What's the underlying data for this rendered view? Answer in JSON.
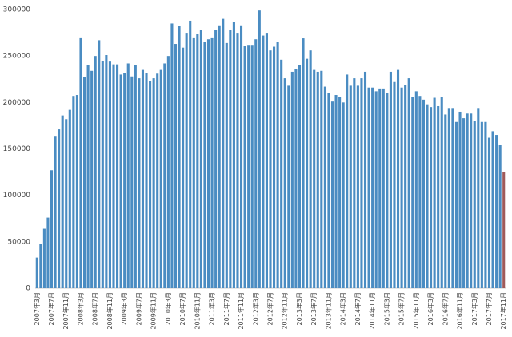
{
  "chart_data": {
    "type": "bar",
    "categories": [
      "2007年3月",
      null,
      null,
      null,
      "2007年7月",
      null,
      null,
      null,
      "2007年11月",
      null,
      null,
      null,
      "2008年3月",
      null,
      null,
      null,
      "2008年7月",
      null,
      null,
      null,
      "2008年11月",
      null,
      null,
      null,
      "2009年3月",
      null,
      null,
      null,
      "2009年7月",
      null,
      null,
      null,
      "2009年11月",
      null,
      null,
      null,
      "2010年3月",
      null,
      null,
      null,
      "2010年7月",
      null,
      null,
      null,
      "2010年11月",
      null,
      null,
      null,
      "2011年3月",
      null,
      null,
      null,
      "2011年7月",
      null,
      null,
      null,
      "2011年11月",
      null,
      null,
      null,
      "2012年3月",
      null,
      null,
      null,
      "2012年7月",
      null,
      null,
      null,
      "2012年11月",
      null,
      null,
      null,
      "2013年3月",
      null,
      null,
      null,
      "2013年7月",
      null,
      null,
      null,
      "2013年11月",
      null,
      null,
      null,
      "2014年3月",
      null,
      null,
      null,
      "2014年7月",
      null,
      null,
      null,
      "2014年11月",
      null,
      null,
      null,
      "2015年3月",
      null,
      null,
      null,
      "2015年7月",
      null,
      null,
      null,
      "2015年11月",
      null,
      null,
      null,
      "2016年3月",
      null,
      null,
      null,
      "2016年7月",
      null,
      null,
      null,
      "2016年11月",
      null,
      null,
      null,
      "2017年3月",
      null,
      null,
      null,
      "2017年7月",
      null,
      null,
      null,
      "2017年11月"
    ],
    "values": [
      33000,
      48000,
      64000,
      76000,
      127000,
      164000,
      171000,
      186000,
      182000,
      192000,
      207000,
      208000,
      270000,
      227000,
      240000,
      234000,
      250000,
      267000,
      245000,
      251000,
      244000,
      241000,
      241000,
      230000,
      232000,
      242000,
      228000,
      240000,
      226000,
      235000,
      232000,
      223000,
      226000,
      231000,
      235000,
      242000,
      250000,
      285000,
      263000,
      282000,
      259000,
      275000,
      288000,
      270000,
      274000,
      278000,
      265000,
      268000,
      270000,
      278000,
      283000,
      290000,
      264000,
      278000,
      287000,
      275000,
      283000,
      261000,
      262000,
      262000,
      268000,
      299000,
      272000,
      275000,
      256000,
      260000,
      265000,
      246000,
      226000,
      218000,
      233000,
      236000,
      240000,
      269000,
      247000,
      256000,
      235000,
      233000,
      234000,
      217000,
      210000,
      201000,
      208000,
      206000,
      200000,
      230000,
      218000,
      226000,
      218000,
      226000,
      233000,
      216000,
      216000,
      212000,
      215000,
      215000,
      210000,
      233000,
      222000,
      235000,
      216000,
      219000,
      226000,
      206000,
      212000,
      207000,
      203000,
      198000,
      195000,
      205000,
      196000,
      206000,
      187000,
      194000,
      194000,
      179000,
      190000,
      183000,
      188000,
      188000,
      180000,
      194000,
      179000,
      179000,
      162000,
      169000,
      165000,
      154000,
      125000
    ],
    "colors": [
      "#4a8cc2",
      "#4a8cc2",
      "#4a8cc2",
      "#4a8cc2",
      "#4a8cc2",
      "#4a8cc2",
      "#4a8cc2",
      "#4a8cc2",
      "#4a8cc2",
      "#4a8cc2",
      "#4a8cc2",
      "#4a8cc2",
      "#4a8cc2",
      "#4a8cc2",
      "#4a8cc2",
      "#4a8cc2",
      "#4a8cc2",
      "#4a8cc2",
      "#4a8cc2",
      "#4a8cc2",
      "#4a8cc2",
      "#4a8cc2",
      "#4a8cc2",
      "#4a8cc2",
      "#4a8cc2",
      "#4a8cc2",
      "#4a8cc2",
      "#4a8cc2",
      "#4a8cc2",
      "#4a8cc2",
      "#4a8cc2",
      "#4a8cc2",
      "#4a8cc2",
      "#4a8cc2",
      "#4a8cc2",
      "#4a8cc2",
      "#4a8cc2",
      "#4a8cc2",
      "#4a8cc2",
      "#4a8cc2",
      "#4a8cc2",
      "#4a8cc2",
      "#4a8cc2",
      "#4a8cc2",
      "#4a8cc2",
      "#4a8cc2",
      "#4a8cc2",
      "#4a8cc2",
      "#4a8cc2",
      "#4a8cc2",
      "#4a8cc2",
      "#4a8cc2",
      "#4a8cc2",
      "#4a8cc2",
      "#4a8cc2",
      "#4a8cc2",
      "#4a8cc2",
      "#4a8cc2",
      "#4a8cc2",
      "#4a8cc2",
      "#4a8cc2",
      "#4a8cc2",
      "#4a8cc2",
      "#4a8cc2",
      "#4a8cc2",
      "#4a8cc2",
      "#4a8cc2",
      "#4a8cc2",
      "#4a8cc2",
      "#4a8cc2",
      "#4a8cc2",
      "#4a8cc2",
      "#4a8cc2",
      "#4a8cc2",
      "#4a8cc2",
      "#4a8cc2",
      "#4a8cc2",
      "#4a8cc2",
      "#4a8cc2",
      "#4a8cc2",
      "#4a8cc2",
      "#4a8cc2",
      "#4a8cc2",
      "#4a8cc2",
      "#4a8cc2",
      "#4a8cc2",
      "#4a8cc2",
      "#4a8cc2",
      "#4a8cc2",
      "#4a8cc2",
      "#4a8cc2",
      "#4a8cc2",
      "#4a8cc2",
      "#4a8cc2",
      "#4a8cc2",
      "#4a8cc2",
      "#4a8cc2",
      "#4a8cc2",
      "#4a8cc2",
      "#4a8cc2",
      "#4a8cc2",
      "#4a8cc2",
      "#4a8cc2",
      "#4a8cc2",
      "#4a8cc2",
      "#4a8cc2",
      "#4a8cc2",
      "#4a8cc2",
      "#4a8cc2",
      "#4a8cc2",
      "#4a8cc2",
      "#4a8cc2",
      "#4a8cc2",
      "#4a8cc2",
      "#4a8cc2",
      "#4a8cc2",
      "#4a8cc2",
      "#4a8cc2",
      "#4a8cc2",
      "#4a8cc2",
      "#4a8cc2",
      "#4a8cc2",
      "#4a8cc2",
      "#4a8cc2",
      "#4a8cc2",
      "#4a8cc2",
      "#4a8cc2",
      "#4a8cc2",
      "#a05a5a"
    ],
    "ylim": [
      0,
      300000
    ],
    "yticks": [
      0,
      50000,
      100000,
      150000,
      200000,
      250000,
      300000
    ],
    "grid": false
  }
}
